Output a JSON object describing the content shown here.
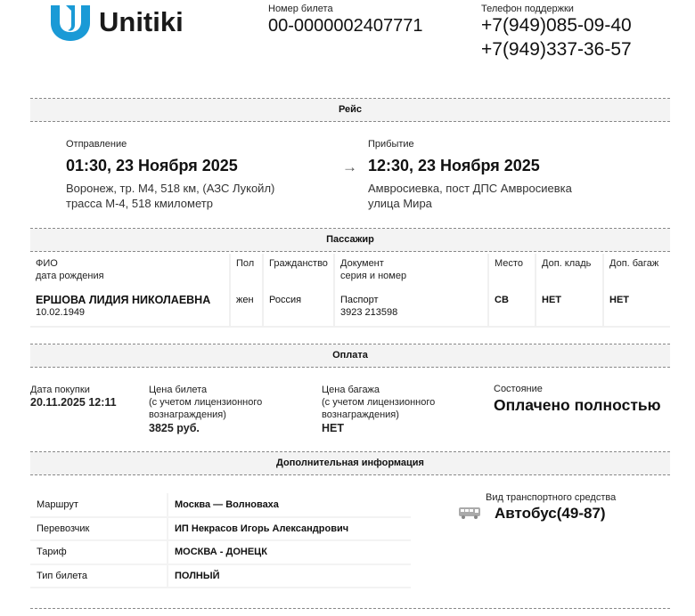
{
  "header": {
    "brand": "Unitiki",
    "ticket_label": "Номер билета",
    "ticket_number": "00-0000002407771",
    "phone_label": "Телефон поддержки",
    "phones": [
      "+7(949)085-09-40",
      "+7(949)337-36-57"
    ]
  },
  "trip": {
    "section": "Рейс",
    "departure": {
      "label": "Отправление",
      "datetime": "01:30, 23 Ноября 2025",
      "address1": "Воронеж, тр. М4, 518 км, (АЗС Лукойл)",
      "address2": "трасса М-4, 518 кмилометр"
    },
    "arrival": {
      "label": "Прибытие",
      "datetime": "12:30, 23 Ноября 2025",
      "address1": "Амвросиевка, пост ДПС Амвросиевка",
      "address2": "улица Мира"
    }
  },
  "passenger": {
    "section": "Пассажир",
    "headers": {
      "name": "ФИО",
      "birth": "дата рождения",
      "sex": "Пол",
      "citizenship": "Гражданство",
      "doc": "Документ",
      "doc_sub": "серия и номер",
      "seat": "Место",
      "carry": "Доп. кладь",
      "baggage": "Доп. багаж"
    },
    "row": {
      "name": "ЕРШОВА ЛИДИЯ НИКОЛАЕВНА",
      "birth": "10.02.1949",
      "sex": "жен",
      "citizenship": "Россия",
      "doc": "Паспорт",
      "doc_num": "3923 213598",
      "seat": "СВ",
      "carry": "НЕТ",
      "baggage": "НЕТ"
    }
  },
  "payment": {
    "section": "Оплата",
    "purchase_label": "Дата покупки",
    "purchase_date": "20.11.2025 12:11",
    "price_label": "Цена билета",
    "price_note1": "(с учетом лицензионного",
    "price_note2": "вознаграждения)",
    "price": "3825 руб.",
    "baggage_label": "Цена багажа",
    "baggage_note1": "(с учетом лицензионного",
    "baggage_note2": "вознаграждения)",
    "baggage_price": "НЕТ",
    "status_label": "Состояние",
    "status": "Оплачено полностью"
  },
  "info": {
    "section": "Дополнительная информация",
    "rows": [
      {
        "k": "Маршрут",
        "v": "Москва — Волноваха"
      },
      {
        "k": "Перевозчик",
        "v": "ИП Некрасов Игорь Александрович"
      },
      {
        "k": "Тариф",
        "v": "МОСКВА - ДОНЕЦК"
      },
      {
        "k": "Тип билета",
        "v": "ПОЛНЫЙ"
      }
    ],
    "vehicle_label": "Вид транспортного средства",
    "vehicle": "Автобус(49-87)",
    "vehicle_icon": "bus-icon"
  },
  "colors": {
    "brand_blue": "#1a9ad6"
  }
}
